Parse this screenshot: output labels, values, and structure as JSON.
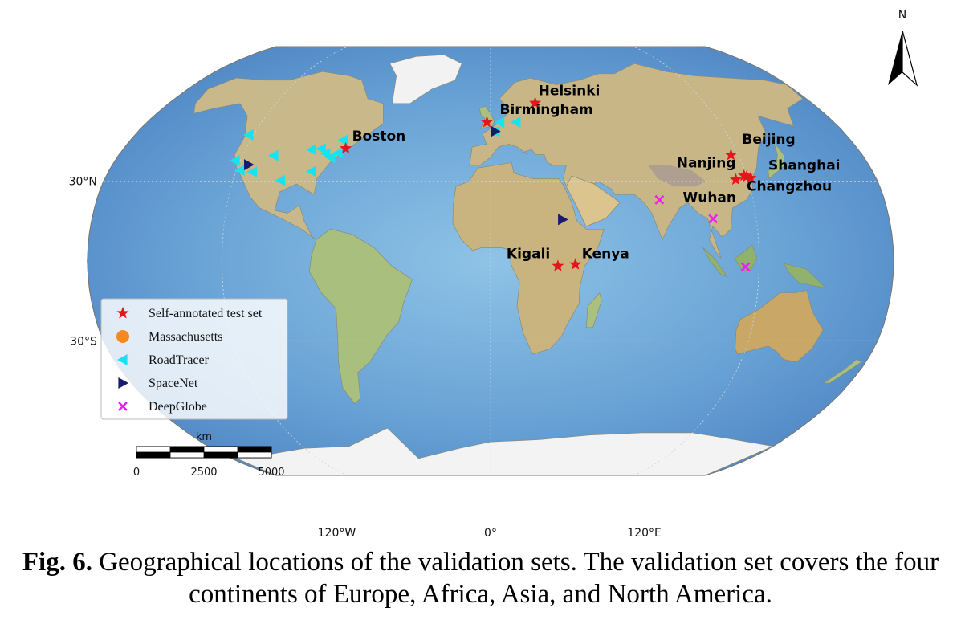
{
  "map": {
    "projection": "Robinson",
    "north_label": "N",
    "lat_labels": [
      "30°N",
      "30°S"
    ],
    "lon_labels": [
      "120°W",
      "0°",
      "120°E"
    ],
    "scale_bar": {
      "unit": "km",
      "ticks": [
        "0",
        "2500",
        "5000"
      ]
    }
  },
  "cities": [
    {
      "name": "Helsinki",
      "lon": 25.0,
      "lat": 60.2
    },
    {
      "name": "Birmingham",
      "lon": -1.9,
      "lat": 52.5
    },
    {
      "name": "Boston",
      "lon": -71.1,
      "lat": 42.4
    },
    {
      "name": "Beijing",
      "lon": 116.4,
      "lat": 39.9
    },
    {
      "name": "Nanjing",
      "lon": 118.8,
      "lat": 32.1
    },
    {
      "name": "Shanghai",
      "lon": 121.5,
      "lat": 31.2
    },
    {
      "name": "Wuhan",
      "lon": 114.3,
      "lat": 30.6
    },
    {
      "name": "Changzhou",
      "lon": 119.9,
      "lat": 31.8
    },
    {
      "name": "Kigali",
      "lon": 30.1,
      "lat": -1.9
    },
    {
      "name": "Kenya",
      "lon": 37.9,
      "lat": -1.3
    }
  ],
  "roadtracer": [
    {
      "lon": -122.4,
      "lat": 47.6
    },
    {
      "lon": -118.2,
      "lat": 34.1
    },
    {
      "lon": -122.4,
      "lat": 37.8
    },
    {
      "lon": -112.1,
      "lat": 33.5
    },
    {
      "lon": -104.9,
      "lat": 39.7
    },
    {
      "lon": -97.7,
      "lat": 30.3
    },
    {
      "lon": -87.6,
      "lat": 41.9
    },
    {
      "lon": -84.4,
      "lat": 33.7
    },
    {
      "lon": -83.0,
      "lat": 42.3
    },
    {
      "lon": -77.0,
      "lat": 38.9
    },
    {
      "lon": -80.0,
      "lat": 40.4
    },
    {
      "lon": -74.0,
      "lat": 40.7
    },
    {
      "lon": -73.6,
      "lat": 45.5
    },
    {
      "lon": 2.35,
      "lat": 48.9
    },
    {
      "lon": 4.9,
      "lat": 52.4
    },
    {
      "lon": 13.4,
      "lat": 52.5
    }
  ],
  "spacenet": [
    {
      "lon": -115.2,
      "lat": 36.2
    },
    {
      "lon": 2.35,
      "lat": 48.9
    },
    {
      "lon": 32.5,
      "lat": 15.6
    }
  ],
  "deepglobe": [
    {
      "lon": 77.2,
      "lat": 23.0
    },
    {
      "lon": 100.5,
      "lat": 15.9
    },
    {
      "lon": 113.9,
      "lat": -2.2
    }
  ],
  "legend": {
    "items": [
      {
        "label": "Self-annotated test set",
        "marker": "star",
        "color": "#e8141b"
      },
      {
        "label": "Massachusetts",
        "marker": "circle",
        "color": "#f5891f"
      },
      {
        "label": "RoadTracer",
        "marker": "triangle-left",
        "color": "#17e3ee"
      },
      {
        "label": "SpaceNet",
        "marker": "triangle-right",
        "color": "#1a1a6c"
      },
      {
        "label": "DeepGlobe",
        "marker": "x",
        "color": "#f01ef0"
      }
    ]
  },
  "caption": {
    "fig_label": "Fig. 6.",
    "text": "Geographical locations of the validation sets. The validation set covers the four continents of Europe, Africa, Asia, and North America."
  }
}
